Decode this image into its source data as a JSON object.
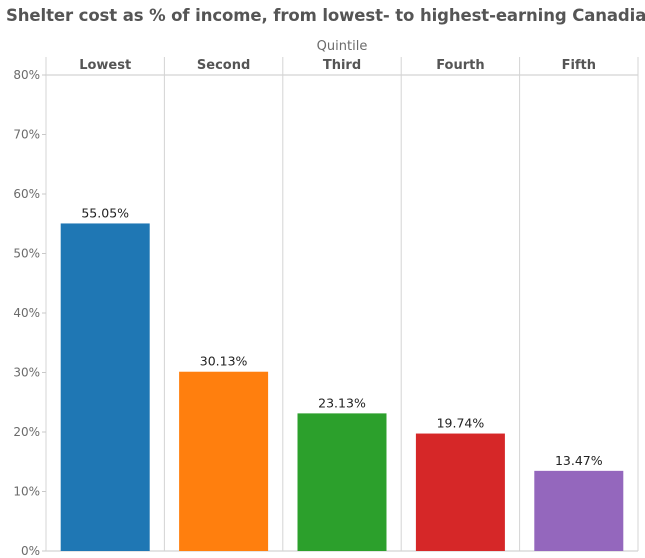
{
  "chart_data": {
    "type": "bar",
    "title": "Shelter cost as % of income, from lowest- to highest-earning Canadians",
    "xlabel": "Quintile",
    "ylabel": "",
    "categories": [
      "Lowest",
      "Second",
      "Third",
      "Fourth",
      "Fifth"
    ],
    "values": [
      55.05,
      30.13,
      23.13,
      19.74,
      13.47
    ],
    "data_labels": [
      "55.05%",
      "30.13%",
      "23.13%",
      "19.74%",
      "13.47%"
    ],
    "colors": [
      "#1f77b4",
      "#ff7f0e",
      "#2ca02c",
      "#d62728",
      "#9467bd"
    ],
    "ylim": [
      0,
      80
    ],
    "yticks": [
      0,
      10,
      20,
      30,
      40,
      50,
      60,
      70,
      80
    ],
    "ytick_labels": [
      "0%",
      "10%",
      "20%",
      "30%",
      "40%",
      "50%",
      "60%",
      "70%",
      "80%"
    ],
    "grid": false,
    "x_axis_position": "top"
  }
}
